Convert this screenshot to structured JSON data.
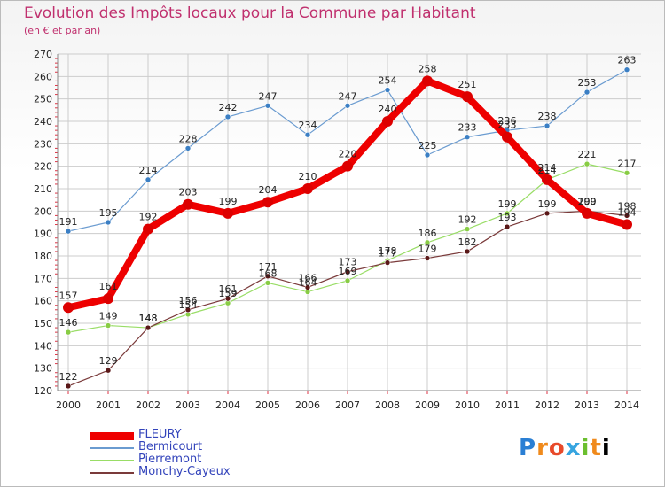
{
  "header": {
    "title": "Evolution des Impôts locaux pour la Commune par Habitant",
    "subtitle": "(en € et par an)"
  },
  "logo": {
    "text": "Proxiti",
    "letters": [
      "P",
      "r",
      "o",
      "x",
      "i",
      "t",
      "i"
    ]
  },
  "colors": {
    "title": "#c0306e",
    "grid": "#cccccc",
    "axis_tick_marks": "#dd3344",
    "legend_text": "#3344bb"
  },
  "chart_data": {
    "type": "line",
    "title": "Evolution des Impôts locaux pour la Commune par Habitant",
    "subtitle": "(en € et par an)",
    "x": [
      "2000",
      "2001",
      "2002",
      "2003",
      "2004",
      "2005",
      "2006",
      "2007",
      "2008",
      "2009",
      "2010",
      "2011",
      "2012",
      "2013",
      "2014"
    ],
    "ylim": [
      120,
      270
    ],
    "yticks": [
      120,
      130,
      140,
      150,
      160,
      170,
      180,
      190,
      200,
      210,
      220,
      230,
      240,
      250,
      260,
      270
    ],
    "grid": true,
    "legend_position": "bottom-left",
    "series": [
      {
        "name": "FLEURY",
        "color": "#ee0000",
        "marker": "#dd0000",
        "width": 8,
        "values": [
          157,
          161,
          192,
          203,
          199,
          204,
          210,
          220,
          240,
          258,
          251,
          233,
          214,
          199,
          194
        ]
      },
      {
        "name": "Bermicourt",
        "color": "#6a9bd0",
        "marker": "#3b7fc4",
        "width": 1.2,
        "values": [
          191,
          195,
          214,
          228,
          242,
          247,
          234,
          247,
          254,
          225,
          233,
          236,
          238,
          253,
          263
        ]
      },
      {
        "name": "Pierremont",
        "color": "#99dd66",
        "marker": "#88cc44",
        "width": 1.2,
        "values": [
          146,
          149,
          148,
          154,
          159,
          168,
          164,
          169,
          178,
          186,
          192,
          199,
          214,
          221,
          217
        ]
      },
      {
        "name": "Monchy-Cayeux",
        "color": "#7a3a3a",
        "marker": "#5a1818",
        "width": 1.2,
        "values": [
          122,
          129,
          148,
          156,
          161,
          171,
          166,
          173,
          177,
          179,
          182,
          193,
          199,
          200,
          198
        ]
      }
    ]
  }
}
